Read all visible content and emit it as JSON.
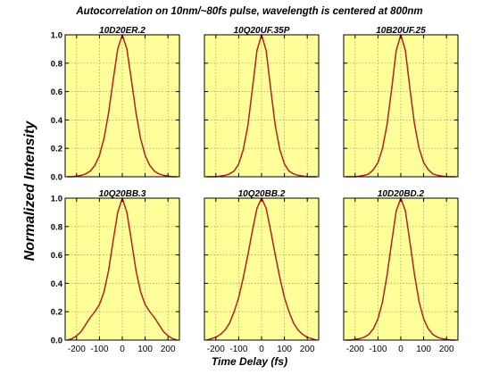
{
  "figure": {
    "title": "Autocorrelation on 10nm/~80fs pulse, wavelength is centered at 800nm",
    "ylabel": "Normalized Intensity",
    "xlabel": "Time Delay (fs)"
  },
  "colors": {
    "plot_background": "#ffff99",
    "curve": "#b22222",
    "grid": "#999966",
    "axes": "#000000"
  },
  "chart_data": [
    {
      "type": "line",
      "title": "10D20ER.2",
      "xlim": [
        -250,
        250
      ],
      "ylim": [
        0,
        1.0
      ],
      "xticks": [
        -200,
        -100,
        0,
        100,
        200
      ],
      "yticks": [
        0.0,
        0.2,
        0.4,
        0.6,
        0.8,
        1.0
      ],
      "show_ytick_labels": true,
      "show_xtick_labels": false,
      "grid": true,
      "x": [
        -240,
        -220,
        -200,
        -180,
        -160,
        -140,
        -120,
        -100,
        -80,
        -60,
        -40,
        -20,
        0,
        20,
        40,
        60,
        80,
        100,
        120,
        140,
        160,
        180,
        200,
        220,
        240
      ],
      "y": [
        0.0,
        0.0,
        0.005,
        0.01,
        0.02,
        0.04,
        0.08,
        0.15,
        0.27,
        0.45,
        0.68,
        0.9,
        1.0,
        0.9,
        0.68,
        0.45,
        0.27,
        0.15,
        0.08,
        0.04,
        0.02,
        0.01,
        0.005,
        0.0,
        0.0
      ]
    },
    {
      "type": "line",
      "title": "10Q20UF.35P",
      "xlim": [
        -250,
        250
      ],
      "ylim": [
        0,
        1.0
      ],
      "xticks": [
        -200,
        -100,
        0,
        100,
        200
      ],
      "yticks": [
        0.0,
        0.2,
        0.4,
        0.6,
        0.8,
        1.0
      ],
      "show_ytick_labels": false,
      "show_xtick_labels": false,
      "grid": true,
      "x": [
        -240,
        -220,
        -200,
        -180,
        -160,
        -140,
        -120,
        -100,
        -80,
        -60,
        -40,
        -20,
        0,
        20,
        40,
        60,
        80,
        100,
        120,
        140,
        160,
        180,
        200,
        220,
        240
      ],
      "y": [
        0.0,
        0.0,
        0.0,
        0.005,
        0.01,
        0.02,
        0.04,
        0.09,
        0.19,
        0.36,
        0.62,
        0.89,
        1.0,
        0.89,
        0.62,
        0.36,
        0.19,
        0.09,
        0.04,
        0.02,
        0.01,
        0.005,
        0.0,
        0.0,
        0.0
      ]
    },
    {
      "type": "line",
      "title": "10B20UF.25",
      "xlim": [
        -250,
        250
      ],
      "ylim": [
        0,
        1.0
      ],
      "xticks": [
        -200,
        -100,
        0,
        100,
        200
      ],
      "yticks": [
        0.0,
        0.2,
        0.4,
        0.6,
        0.8,
        1.0
      ],
      "show_ytick_labels": false,
      "show_xtick_labels": false,
      "grid": true,
      "x": [
        -240,
        -220,
        -200,
        -180,
        -160,
        -140,
        -120,
        -100,
        -80,
        -60,
        -40,
        -20,
        0,
        20,
        40,
        60,
        80,
        100,
        120,
        140,
        160,
        180,
        200,
        220,
        240
      ],
      "y": [
        0.0,
        0.0,
        0.0,
        0.005,
        0.01,
        0.02,
        0.05,
        0.1,
        0.2,
        0.37,
        0.62,
        0.89,
        1.0,
        0.89,
        0.62,
        0.37,
        0.2,
        0.1,
        0.05,
        0.02,
        0.01,
        0.005,
        0.0,
        0.0,
        0.0
      ]
    },
    {
      "type": "line",
      "title": "10Q20BB.3",
      "xlim": [
        -250,
        250
      ],
      "ylim": [
        0,
        1.0
      ],
      "xticks": [
        -200,
        -100,
        0,
        100,
        200
      ],
      "yticks": [
        0.0,
        0.2,
        0.4,
        0.6,
        0.8,
        1.0
      ],
      "show_ytick_labels": true,
      "show_xtick_labels": true,
      "grid": true,
      "x": [
        -240,
        -220,
        -200,
        -180,
        -160,
        -140,
        -120,
        -100,
        -80,
        -60,
        -40,
        -20,
        0,
        20,
        40,
        60,
        80,
        100,
        120,
        140,
        160,
        180,
        200,
        220,
        240
      ],
      "y": [
        0.0,
        0.01,
        0.03,
        0.06,
        0.11,
        0.16,
        0.2,
        0.25,
        0.34,
        0.49,
        0.7,
        0.9,
        1.0,
        0.9,
        0.7,
        0.49,
        0.34,
        0.25,
        0.2,
        0.16,
        0.11,
        0.06,
        0.03,
        0.01,
        0.0
      ]
    },
    {
      "type": "line",
      "title": "10Q20BB.2",
      "xlim": [
        -250,
        250
      ],
      "ylim": [
        0,
        1.0
      ],
      "xticks": [
        -200,
        -100,
        0,
        100,
        200
      ],
      "yticks": [
        0.0,
        0.2,
        0.4,
        0.6,
        0.8,
        1.0
      ],
      "show_ytick_labels": false,
      "show_xtick_labels": true,
      "grid": true,
      "x": [
        -240,
        -220,
        -200,
        -180,
        -160,
        -140,
        -120,
        -100,
        -80,
        -60,
        -40,
        -20,
        0,
        20,
        40,
        60,
        80,
        100,
        120,
        140,
        160,
        180,
        200,
        220,
        240
      ],
      "y": [
        0.0,
        0.01,
        0.02,
        0.04,
        0.07,
        0.12,
        0.2,
        0.3,
        0.44,
        0.6,
        0.77,
        0.93,
        1.0,
        0.93,
        0.77,
        0.6,
        0.44,
        0.3,
        0.2,
        0.12,
        0.07,
        0.04,
        0.02,
        0.01,
        0.0
      ]
    },
    {
      "type": "line",
      "title": "10D20BD.2",
      "xlim": [
        -250,
        250
      ],
      "ylim": [
        0,
        1.0
      ],
      "xticks": [
        -200,
        -100,
        0,
        100,
        200
      ],
      "yticks": [
        0.0,
        0.2,
        0.4,
        0.6,
        0.8,
        1.0
      ],
      "show_ytick_labels": false,
      "show_xtick_labels": true,
      "grid": true,
      "x": [
        -240,
        -220,
        -200,
        -180,
        -160,
        -140,
        -120,
        -100,
        -80,
        -60,
        -40,
        -20,
        0,
        20,
        40,
        60,
        80,
        100,
        120,
        140,
        160,
        180,
        200,
        220,
        240
      ],
      "y": [
        0.0,
        0.0,
        0.005,
        0.01,
        0.02,
        0.04,
        0.08,
        0.15,
        0.27,
        0.46,
        0.69,
        0.91,
        1.0,
        0.91,
        0.69,
        0.46,
        0.27,
        0.15,
        0.08,
        0.04,
        0.02,
        0.01,
        0.005,
        0.0,
        0.0
      ]
    }
  ]
}
